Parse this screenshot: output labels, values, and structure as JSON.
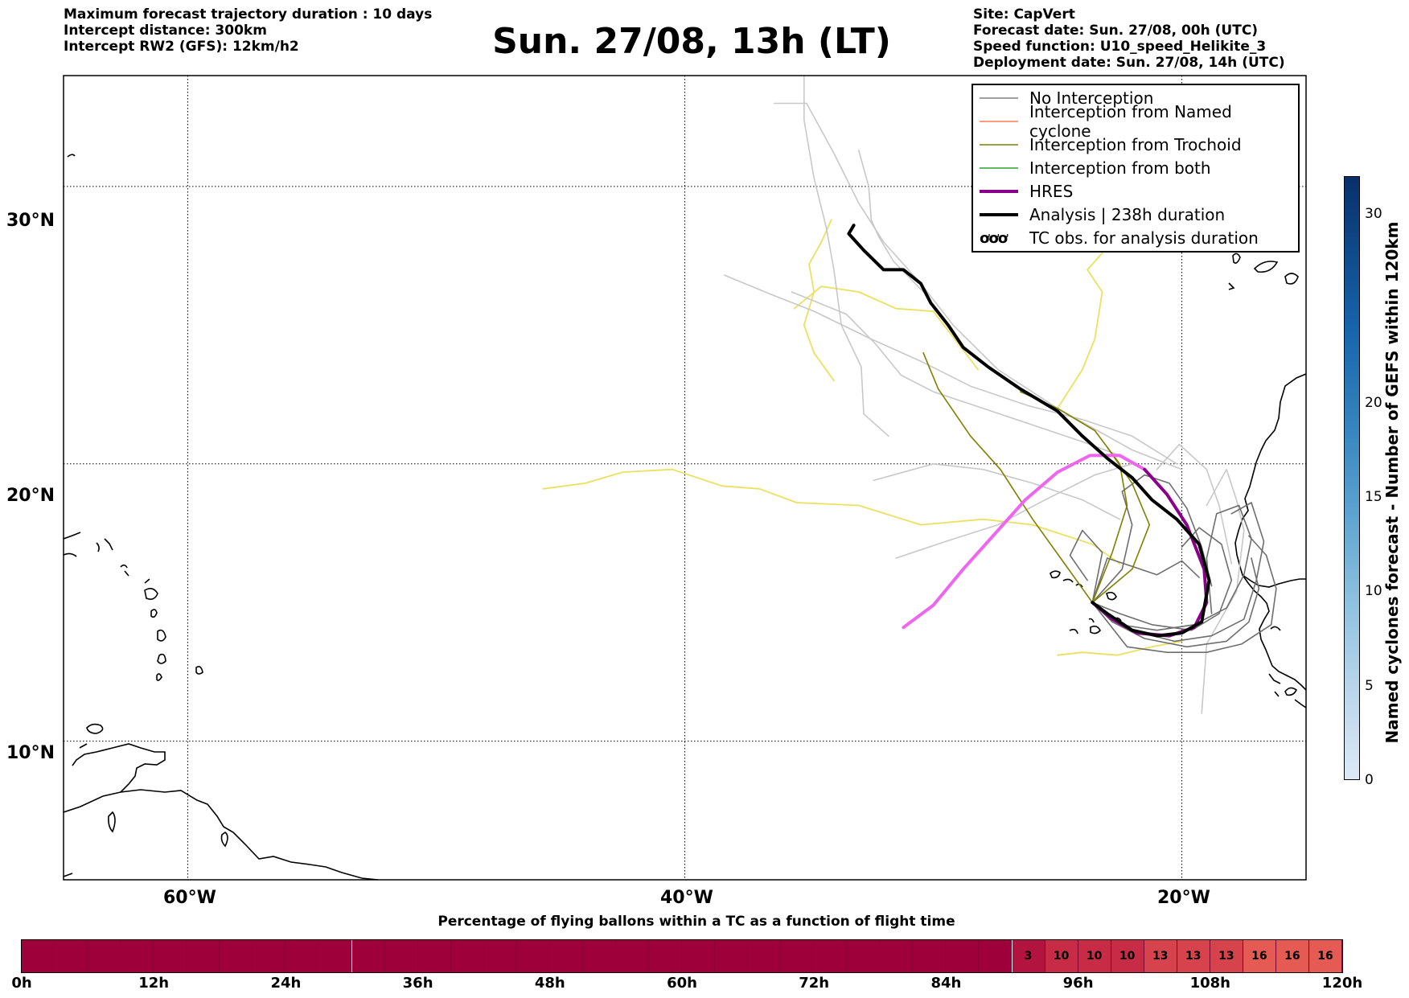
{
  "header": {
    "left_lines": [
      "Maximum forecast trajectory duration : 10 days",
      "Intercept distance: 300km",
      "Intercept RW2 (GFS):  12km/h2"
    ],
    "right_lines": [
      "Site: CapVert",
      "Forecast date: Sun. 27/08, 00h (UTC)",
      "Speed function: U10_speed_Helikite_3",
      "Deployment date: Sun. 27/08, 14h (UTC)"
    ],
    "title": "Sun. 27/08, 13h (LT)"
  },
  "map": {
    "lat_labels": [
      "30°N",
      "20°N",
      "10°N"
    ],
    "lon_labels": [
      "60°W",
      "40°W",
      "20°W"
    ],
    "lon_range": [
      -65,
      -15
    ],
    "lat_range": [
      5,
      34
    ]
  },
  "legend": {
    "items": [
      {
        "label": "No Interception",
        "color": "#808080",
        "style": "thin"
      },
      {
        "label": "Interception from Named cyclone",
        "color": "#ff7f50",
        "style": "thin"
      },
      {
        "label": "Interception from Trochoid",
        "color": "#808000",
        "style": "thin"
      },
      {
        "label": "Interception from both",
        "color": "#2ca02c",
        "style": "thin"
      },
      {
        "label": "HRES",
        "color": "#8b008b",
        "style": "thick"
      },
      {
        "label": "Analysis | 238h duration",
        "color": "#000000",
        "style": "thick"
      },
      {
        "label": "TC obs. for analysis duration",
        "icon": "tc-symbols-icon",
        "symbol": "ơơơ"
      }
    ]
  },
  "colorbar_vertical": {
    "label": "Named cyclones forecast - Number of GEFS within 120km",
    "ticks": [
      "0",
      "5",
      "10",
      "15",
      "20",
      "30"
    ],
    "tick_values": [
      0,
      5,
      10,
      15,
      20,
      30
    ],
    "max": 32
  },
  "colorbar_horizontal": {
    "title": "Percentage of flying ballons within a TC as a function of flight time",
    "tick_labels": [
      "0h",
      "12h",
      "24h",
      "36h",
      "48h",
      "60h",
      "72h",
      "84h",
      "96h",
      "108h",
      "120h"
    ],
    "hours_max": 120,
    "base_color": "#9e0039",
    "cells": [
      {
        "label": "3",
        "color": "#b3143f"
      },
      {
        "label": "10",
        "color": "#c72b45"
      },
      {
        "label": "10",
        "color": "#c72b45"
      },
      {
        "label": "10",
        "color": "#c72b45"
      },
      {
        "label": "13",
        "color": "#d7434c"
      },
      {
        "label": "13",
        "color": "#d7434c"
      },
      {
        "label": "13",
        "color": "#d7434c"
      },
      {
        "label": "16",
        "color": "#e55a52"
      },
      {
        "label": "16",
        "color": "#e55a52"
      },
      {
        "label": "16",
        "color": "#e55a52"
      }
    ]
  },
  "trajectories": {
    "analysis": [
      [
        -33.2,
        28.6
      ],
      [
        -33.4,
        28.3
      ],
      [
        -32.8,
        27.7
      ],
      [
        -32.0,
        27.0
      ],
      [
        -31.2,
        27.0
      ],
      [
        -30.5,
        26.5
      ],
      [
        -30.1,
        25.8
      ],
      [
        -29.4,
        25.0
      ],
      [
        -28.8,
        24.2
      ],
      [
        -27.8,
        23.5
      ],
      [
        -26.5,
        22.7
      ],
      [
        -25.0,
        21.9
      ],
      [
        -24.0,
        21.0
      ],
      [
        -23.0,
        20.2
      ],
      [
        -22.0,
        19.5
      ],
      [
        -21.2,
        18.7
      ],
      [
        -20.2,
        18.0
      ],
      [
        -19.3,
        17.1
      ],
      [
        -18.9,
        15.8
      ],
      [
        -19.2,
        14.3
      ],
      [
        -20.0,
        13.9
      ],
      [
        -21.0,
        13.8
      ],
      [
        -22.0,
        14.0
      ],
      [
        -23.0,
        14.6
      ],
      [
        -23.6,
        15.0
      ]
    ],
    "hres": [
      [
        -31.2,
        14.1
      ],
      [
        -30.0,
        14.9
      ],
      [
        -28.8,
        16.2
      ],
      [
        -27.5,
        17.5
      ],
      [
        -26.3,
        18.7
      ],
      [
        -25.0,
        19.7
      ],
      [
        -23.7,
        20.3
      ],
      [
        -22.5,
        20.3
      ],
      [
        -21.5,
        19.8
      ],
      [
        -20.6,
        18.9
      ],
      [
        -19.8,
        17.8
      ],
      [
        -19.1,
        16.2
      ],
      [
        -19.0,
        15.0
      ],
      [
        -19.5,
        14.1
      ],
      [
        -20.5,
        13.8
      ],
      [
        -21.8,
        13.9
      ],
      [
        -22.8,
        14.4
      ],
      [
        -23.6,
        15.0
      ]
    ],
    "trochoid": [
      [
        [
          -23.6,
          15.0
        ],
        [
          -24.8,
          16.5
        ],
        [
          -26.0,
          18.0
        ],
        [
          -27.3,
          19.8
        ],
        [
          -28.5,
          21.0
        ],
        [
          -29.8,
          22.7
        ],
        [
          -30.4,
          24.0
        ]
      ],
      [
        [
          -23.6,
          15.0
        ],
        [
          -22.8,
          16.8
        ],
        [
          -22.2,
          18.5
        ],
        [
          -22.5,
          20.0
        ],
        [
          -23.5,
          21.2
        ],
        [
          -25.0,
          22.0
        ],
        [
          -26.5,
          22.6
        ]
      ],
      [
        [
          -23.6,
          15.0
        ],
        [
          -22.0,
          16.2
        ],
        [
          -21.3,
          17.8
        ],
        [
          -22.0,
          19.3
        ],
        [
          -23.0,
          20.6
        ]
      ]
    ],
    "yellow": [
      [
        [
          -45.7,
          19.1
        ],
        [
          -44.0,
          19.3
        ],
        [
          -42.5,
          19.7
        ],
        [
          -40.5,
          19.8
        ],
        [
          -38.5,
          19.2
        ],
        [
          -37.0,
          19.1
        ],
        [
          -35.5,
          18.6
        ],
        [
          -33.0,
          18.5
        ],
        [
          -30.5,
          17.8
        ],
        [
          -28.0,
          18.0
        ],
        [
          -26.0,
          17.8
        ],
        [
          -23.6,
          17.1
        ],
        [
          -22.5,
          16.4
        ]
      ],
      [
        [
          -25.0,
          13.1
        ],
        [
          -24.0,
          13.2
        ],
        [
          -22.6,
          13.1
        ],
        [
          -21.2,
          13.4
        ],
        [
          -20.0,
          13.6
        ]
      ],
      [
        [
          -35.6,
          25.6
        ],
        [
          -34.5,
          26.4
        ],
        [
          -33.0,
          26.2
        ],
        [
          -31.5,
          25.6
        ],
        [
          -30.0,
          25.5
        ],
        [
          -28.2,
          23.4
        ]
      ],
      [
        [
          -34.1,
          28.8
        ],
        [
          -34.5,
          28.0
        ],
        [
          -35.0,
          27.2
        ],
        [
          -34.8,
          26.2
        ],
        [
          -35.2,
          25.0
        ],
        [
          -34.8,
          24.0
        ],
        [
          -34.0,
          23.0
        ]
      ],
      [
        [
          -25.0,
          22.0
        ],
        [
          -24.0,
          23.4
        ],
        [
          -23.5,
          24.5
        ],
        [
          -23.2,
          26.2
        ],
        [
          -23.8,
          27.0
        ],
        [
          -22.8,
          28.0
        ]
      ]
    ],
    "grey_light": [
      [
        [
          -38.4,
          26.8
        ],
        [
          -36.5,
          26.1
        ],
        [
          -34.8,
          25.5
        ],
        [
          -32.5,
          24.5
        ],
        [
          -30.5,
          23.7
        ],
        [
          -28.5,
          22.8
        ],
        [
          -26.2,
          22.1
        ],
        [
          -24.0,
          21.6
        ],
        [
          -22.0,
          21.0
        ],
        [
          -20.2,
          20.0
        ]
      ],
      [
        [
          -36.4,
          33.0
        ],
        [
          -35.1,
          33.0
        ],
        [
          -34.0,
          31.2
        ],
        [
          -33.0,
          29.4
        ],
        [
          -32.0,
          28.0
        ],
        [
          -30.5,
          26.5
        ],
        [
          -29.2,
          25.0
        ],
        [
          -27.4,
          23.4
        ],
        [
          -25.0,
          22.0
        ],
        [
          -22.0,
          20.5
        ],
        [
          -20.0,
          19.8
        ]
      ],
      [
        [
          -35.7,
          26.2
        ],
        [
          -33.5,
          25.4
        ],
        [
          -32.3,
          24.3
        ],
        [
          -31.3,
          23.2
        ],
        [
          -30.0,
          22.6
        ],
        [
          -28.0,
          22.0
        ],
        [
          -26.0,
          21.4
        ],
        [
          -24.0,
          20.8
        ],
        [
          -22.5,
          20.3
        ]
      ],
      [
        [
          -31.5,
          16.6
        ],
        [
          -29.5,
          17.2
        ],
        [
          -27.4,
          17.8
        ],
        [
          -25.5,
          18.7
        ],
        [
          -23.5,
          19.6
        ],
        [
          -22.0,
          20.0
        ]
      ],
      [
        [
          -32.4,
          19.4
        ],
        [
          -30.0,
          20.0
        ],
        [
          -28.0,
          19.8
        ],
        [
          -26.0,
          19.3
        ],
        [
          -24.0,
          18.7
        ],
        [
          -22.5,
          18.0
        ]
      ],
      [
        [
          -33.0,
          31.3
        ],
        [
          -32.6,
          30.0
        ],
        [
          -32.5,
          28.8
        ],
        [
          -32.2,
          28.2
        ],
        [
          -31.6,
          27.3
        ],
        [
          -30.4,
          26.2
        ]
      ],
      [
        [
          -34.3,
          36.0
        ],
        [
          -35.2,
          34.0
        ],
        [
          -35.2,
          32.4
        ],
        [
          -34.8,
          30.3
        ],
        [
          -34.3,
          28.5
        ],
        [
          -34.0,
          27.0
        ],
        [
          -33.7,
          25.0
        ],
        [
          -32.9,
          23.5
        ],
        [
          -32.8,
          21.8
        ],
        [
          -31.8,
          21.0
        ]
      ],
      [
        [
          -19.0,
          18.5
        ],
        [
          -18.2,
          19.8
        ],
        [
          -17.8,
          18.7
        ],
        [
          -17.5,
          17.6
        ],
        [
          -17.8,
          15.4
        ],
        [
          -19.0,
          13.5
        ],
        [
          -19.2,
          11.0
        ]
      ],
      [
        [
          -21.0,
          19.8
        ],
        [
          -20.1,
          20.7
        ],
        [
          -19.0,
          19.8
        ],
        [
          -18.5,
          18.5
        ],
        [
          -18.0,
          16.4
        ]
      ]
    ],
    "grey_dark": [
      [
        [
          -23.6,
          15.0
        ],
        [
          -22.5,
          14.2
        ],
        [
          -21.0,
          14.0
        ],
        [
          -19.5,
          14.2
        ],
        [
          -18.2,
          14.8
        ],
        [
          -17.5,
          16.0
        ],
        [
          -17.2,
          17.3
        ],
        [
          -17.7,
          18.5
        ],
        [
          -18.6,
          18.2
        ],
        [
          -19.0,
          16.6
        ],
        [
          -18.8,
          14.6
        ]
      ],
      [
        [
          -23.6,
          15.0
        ],
        [
          -22.0,
          14.0
        ],
        [
          -20.3,
          13.6
        ],
        [
          -18.8,
          13.8
        ],
        [
          -17.5,
          14.4
        ],
        [
          -17.0,
          15.8
        ],
        [
          -16.7,
          17.2
        ],
        [
          -17.2,
          18.6
        ],
        [
          -18.0,
          18.2
        ]
      ],
      [
        [
          -23.6,
          15.0
        ],
        [
          -22.8,
          14.3
        ],
        [
          -21.5,
          13.7
        ],
        [
          -19.8,
          13.4
        ],
        [
          -18.2,
          13.6
        ],
        [
          -17.3,
          14.3
        ],
        [
          -16.9,
          15.5
        ],
        [
          -17.2,
          16.6
        ]
      ],
      [
        [
          -23.6,
          15.0
        ],
        [
          -22.5,
          14.6
        ],
        [
          -21.2,
          14.2
        ],
        [
          -19.6,
          14.0
        ],
        [
          -18.5,
          14.6
        ],
        [
          -18.0,
          15.8
        ],
        [
          -18.4,
          17.1
        ],
        [
          -19.3,
          17.7
        ],
        [
          -20.0,
          17.0
        ]
      ],
      [
        [
          -23.6,
          15.0
        ],
        [
          -22.4,
          16.2
        ],
        [
          -22.0,
          17.8
        ],
        [
          -22.4,
          19.0
        ],
        [
          -21.5,
          19.6
        ],
        [
          -20.5,
          19.3
        ],
        [
          -19.8,
          18.4
        ],
        [
          -19.2,
          17.0
        ],
        [
          -18.8,
          15.6
        ]
      ],
      [
        [
          -23.6,
          15.0
        ],
        [
          -23.0,
          16.6
        ],
        [
          -22.0,
          16.3
        ],
        [
          -21.0,
          16.0
        ],
        [
          -20.0,
          16.5
        ],
        [
          -19.3,
          15.9
        ]
      ],
      [
        [
          -23.6,
          15.0
        ],
        [
          -22.2,
          13.4
        ],
        [
          -20.6,
          13.2
        ],
        [
          -19.0,
          13.2
        ],
        [
          -17.6,
          13.5
        ],
        [
          -16.4,
          14.2
        ],
        [
          -16.2,
          15.5
        ],
        [
          -16.6,
          16.7
        ],
        [
          -17.3,
          17.4
        ]
      ],
      [
        [
          -23.6,
          15.0
        ],
        [
          -23.2,
          16.8
        ],
        [
          -24.0,
          17.6
        ],
        [
          -24.5,
          16.7
        ],
        [
          -23.8,
          15.8
        ]
      ]
    ]
  }
}
